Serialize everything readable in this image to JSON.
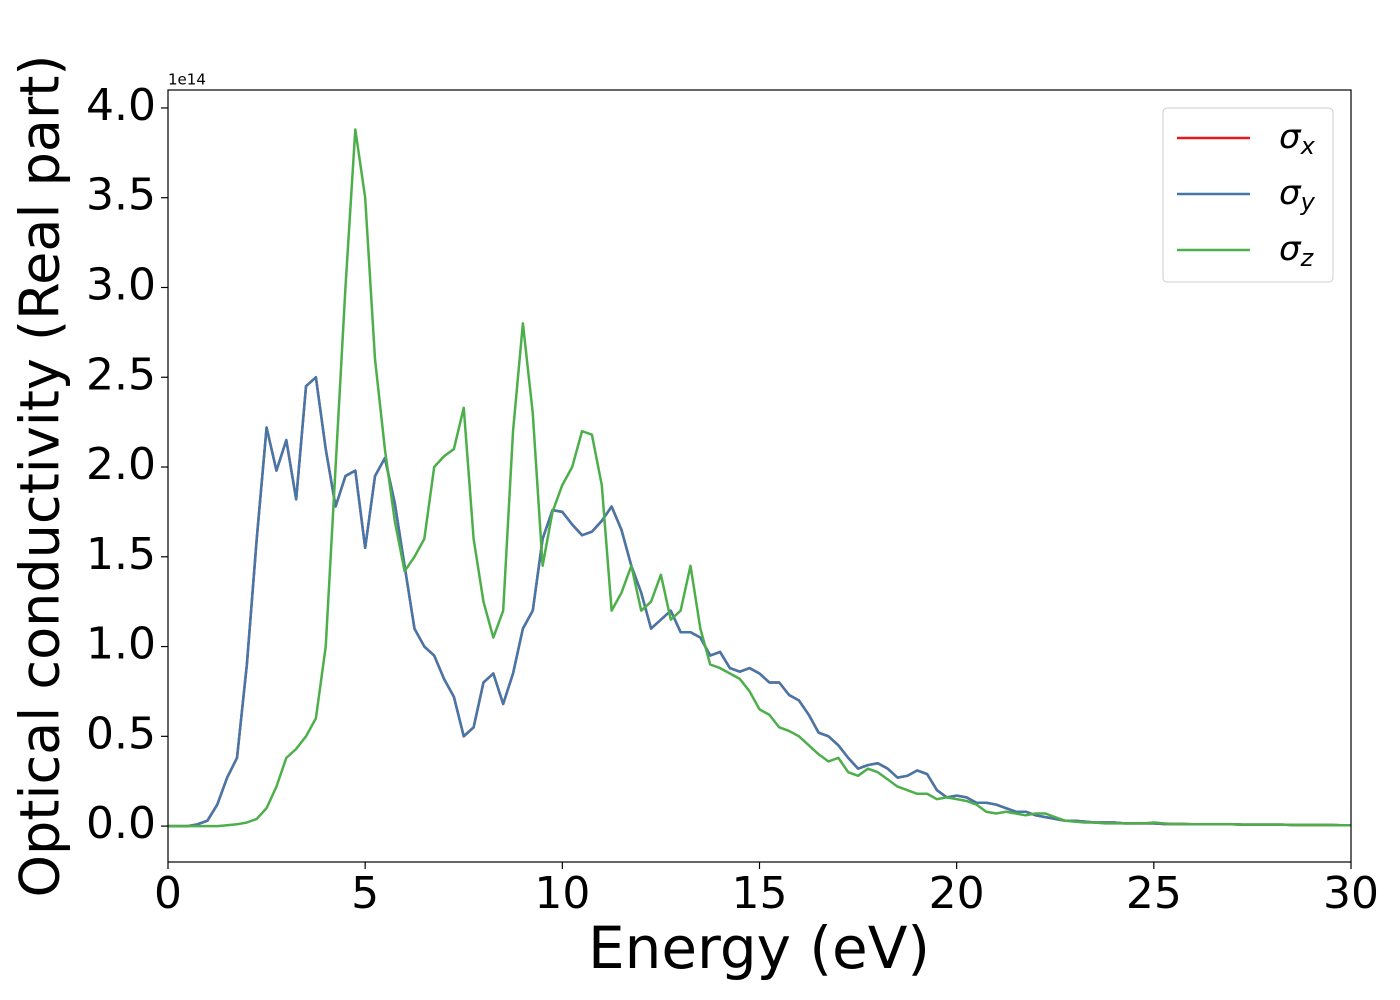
{
  "chart_data": {
    "type": "line",
    "xlabel": "Energy (eV)",
    "ylabel": "Optical conductivity (Real part)",
    "y_offset_label": "1e14",
    "x": [
      0,
      0.25,
      0.5,
      0.75,
      1,
      1.25,
      1.5,
      1.75,
      2,
      2.25,
      2.5,
      2.75,
      3,
      3.25,
      3.5,
      3.75,
      4,
      4.25,
      4.5,
      4.75,
      5,
      5.25,
      5.5,
      5.75,
      6,
      6.25,
      6.5,
      6.75,
      7,
      7.25,
      7.5,
      7.75,
      8,
      8.25,
      8.5,
      8.75,
      9,
      9.25,
      9.5,
      9.75,
      10,
      10.25,
      10.5,
      10.75,
      11,
      11.25,
      11.5,
      11.75,
      12,
      12.25,
      12.5,
      12.75,
      13,
      13.25,
      13.5,
      13.75,
      14,
      14.25,
      14.5,
      14.75,
      15,
      15.25,
      15.5,
      15.75,
      16,
      16.25,
      16.5,
      16.75,
      17,
      17.25,
      17.5,
      17.75,
      18,
      18.25,
      18.5,
      18.75,
      19,
      19.25,
      19.5,
      19.75,
      20,
      20.25,
      20.5,
      20.75,
      21,
      21.25,
      21.5,
      21.75,
      22,
      22.25,
      22.5,
      22.75,
      23,
      23.25,
      23.5,
      23.75,
      24,
      24.25,
      24.5,
      24.75,
      25,
      25.25,
      25.5,
      25.75,
      26,
      26.25,
      26.5,
      26.75,
      27,
      27.25,
      27.5,
      27.75,
      28,
      28.25,
      28.5,
      28.75,
      29,
      29.25,
      29.5,
      29.75,
      30
    ],
    "series": [
      {
        "name": "σx",
        "color": "#e41a1c",
        "values": [
          0,
          0,
          0,
          0.01,
          0.03,
          0.12,
          0.27,
          0.38,
          0.9,
          1.6,
          2.22,
          1.98,
          2.15,
          1.82,
          2.45,
          2.5,
          2.1,
          1.78,
          1.95,
          1.98,
          1.55,
          1.95,
          2.05,
          1.8,
          1.45,
          1.1,
          1.0,
          0.95,
          0.82,
          0.72,
          0.5,
          0.55,
          0.8,
          0.85,
          0.68,
          0.85,
          1.1,
          1.2,
          1.6,
          1.76,
          1.75,
          1.68,
          1.62,
          1.64,
          1.7,
          1.78,
          1.65,
          1.45,
          1.3,
          1.1,
          1.15,
          1.2,
          1.08,
          1.08,
          1.05,
          0.95,
          0.97,
          0.88,
          0.86,
          0.88,
          0.85,
          0.8,
          0.8,
          0.73,
          0.7,
          0.62,
          0.52,
          0.5,
          0.45,
          0.38,
          0.32,
          0.34,
          0.35,
          0.32,
          0.27,
          0.28,
          0.31,
          0.29,
          0.2,
          0.16,
          0.17,
          0.16,
          0.13,
          0.13,
          0.12,
          0.1,
          0.08,
          0.08,
          0.06,
          0.05,
          0.04,
          0.03,
          0.03,
          0.025,
          0.02,
          0.02,
          0.02,
          0.015,
          0.015,
          0.015,
          0.015,
          0.012,
          0.012,
          0.012,
          0.01,
          0.01,
          0.01,
          0.01,
          0.01,
          0.008,
          0.008,
          0.008,
          0.008,
          0.008,
          0.006,
          0.006,
          0.006,
          0.006,
          0.006,
          0.005,
          0.005
        ]
      },
      {
        "name": "σy",
        "color": "#4477aa",
        "values": [
          0,
          0,
          0,
          0.01,
          0.03,
          0.12,
          0.27,
          0.38,
          0.9,
          1.6,
          2.22,
          1.98,
          2.15,
          1.82,
          2.45,
          2.5,
          2.1,
          1.78,
          1.95,
          1.98,
          1.55,
          1.95,
          2.05,
          1.8,
          1.45,
          1.1,
          1.0,
          0.95,
          0.82,
          0.72,
          0.5,
          0.55,
          0.8,
          0.85,
          0.68,
          0.85,
          1.1,
          1.2,
          1.6,
          1.76,
          1.75,
          1.68,
          1.62,
          1.64,
          1.7,
          1.78,
          1.65,
          1.45,
          1.3,
          1.1,
          1.15,
          1.2,
          1.08,
          1.08,
          1.05,
          0.95,
          0.97,
          0.88,
          0.86,
          0.88,
          0.85,
          0.8,
          0.8,
          0.73,
          0.7,
          0.62,
          0.52,
          0.5,
          0.45,
          0.38,
          0.32,
          0.34,
          0.35,
          0.32,
          0.27,
          0.28,
          0.31,
          0.29,
          0.2,
          0.16,
          0.17,
          0.16,
          0.13,
          0.13,
          0.12,
          0.1,
          0.08,
          0.08,
          0.06,
          0.05,
          0.04,
          0.03,
          0.03,
          0.025,
          0.02,
          0.02,
          0.02,
          0.015,
          0.015,
          0.015,
          0.015,
          0.012,
          0.012,
          0.012,
          0.01,
          0.01,
          0.01,
          0.01,
          0.01,
          0.008,
          0.008,
          0.008,
          0.008,
          0.008,
          0.006,
          0.006,
          0.006,
          0.006,
          0.006,
          0.005,
          0.005
        ]
      },
      {
        "name": "σz",
        "color": "#4daf4a",
        "values": [
          0,
          0,
          0,
          0,
          0,
          0,
          0.005,
          0.01,
          0.02,
          0.04,
          0.1,
          0.22,
          0.38,
          0.43,
          0.5,
          0.6,
          1.0,
          2.0,
          3.0,
          3.88,
          3.5,
          2.6,
          2.1,
          1.7,
          1.42,
          1.5,
          1.6,
          2.0,
          2.06,
          2.1,
          2.33,
          1.6,
          1.25,
          1.05,
          1.2,
          2.2,
          2.8,
          2.3,
          1.45,
          1.75,
          1.9,
          2.0,
          2.2,
          2.18,
          1.9,
          1.2,
          1.3,
          1.45,
          1.2,
          1.25,
          1.4,
          1.15,
          1.2,
          1.45,
          1.1,
          0.9,
          0.88,
          0.85,
          0.82,
          0.75,
          0.65,
          0.62,
          0.55,
          0.53,
          0.5,
          0.45,
          0.4,
          0.36,
          0.38,
          0.3,
          0.28,
          0.32,
          0.3,
          0.26,
          0.22,
          0.2,
          0.18,
          0.18,
          0.15,
          0.16,
          0.15,
          0.14,
          0.12,
          0.08,
          0.07,
          0.08,
          0.07,
          0.06,
          0.07,
          0.07,
          0.05,
          0.03,
          0.025,
          0.02,
          0.02,
          0.015,
          0.015,
          0.015,
          0.015,
          0.015,
          0.02,
          0.015,
          0.012,
          0.01,
          0.01,
          0.01,
          0.01,
          0.01,
          0.01,
          0.008,
          0.008,
          0.008,
          0.008,
          0.008,
          0.006,
          0.006,
          0.006,
          0.006,
          0.006,
          0.005,
          0.005
        ]
      }
    ],
    "xlim": [
      0,
      30
    ],
    "xticks": [
      0,
      5,
      10,
      15,
      20,
      25,
      30
    ],
    "ylim": [
      -0.2,
      4.1
    ],
    "yticks": [
      {
        "value": 0,
        "label": "0.0"
      },
      0.5,
      {
        "value": 1,
        "label": "1.0"
      },
      1.5,
      {
        "value": 2,
        "label": "2.0"
      },
      2.5,
      {
        "value": 3,
        "label": "3.0"
      },
      3.5,
      {
        "value": 4,
        "label": "4.0"
      }
    ],
    "grid": false,
    "legend": "upper right"
  }
}
